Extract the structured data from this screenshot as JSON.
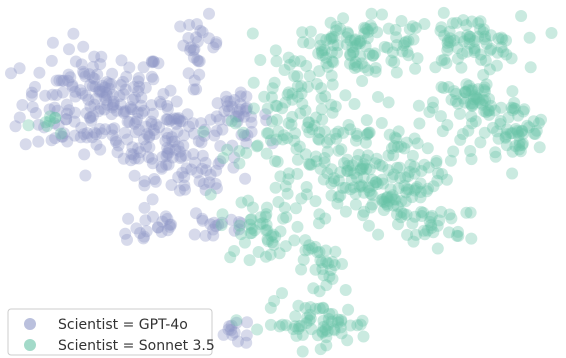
{
  "chart_data": {
    "type": "scatter",
    "title": "",
    "xlabel": "",
    "ylabel": "",
    "axes_visible": false,
    "grid": false,
    "xlim": [
      0,
      100
    ],
    "ylim": [
      0,
      100
    ],
    "legend": {
      "placement": "bottom-left"
    },
    "series": [
      {
        "name": "Scientist = GPT-4o",
        "color": "#8c96c6",
        "clusters": [
          {
            "center": [
              14,
              72
            ],
            "spread": [
              7,
              8
            ],
            "count": 180
          },
          {
            "center": [
              28,
              62
            ],
            "spread": [
              5,
              6
            ],
            "count": 90
          },
          {
            "center": [
              33,
              89
            ],
            "spread": [
              2,
              4
            ],
            "count": 25
          },
          {
            "center": [
              40,
              68
            ],
            "spread": [
              3,
              3
            ],
            "count": 35
          },
          {
            "center": [
              24,
              36
            ],
            "spread": [
              3,
              3
            ],
            "count": 18
          },
          {
            "center": [
              36,
              37
            ],
            "spread": [
              4,
              3
            ],
            "count": 20
          },
          {
            "center": [
              40,
              6
            ],
            "spread": [
              2,
              2
            ],
            "count": 12
          },
          {
            "center": [
              30,
              50
            ],
            "spread": [
              6,
              4
            ],
            "count": 30
          }
        ]
      },
      {
        "name": "Scientist = Sonnet 3.5",
        "color": "#66c2a5",
        "clusters": [
          {
            "center": [
              63,
              88
            ],
            "spread": [
              7,
              4
            ],
            "count": 110
          },
          {
            "center": [
              83,
              89
            ],
            "spread": [
              5,
              4
            ],
            "count": 70
          },
          {
            "center": [
              85,
              72
            ],
            "spread": [
              4,
              4
            ],
            "count": 60
          },
          {
            "center": [
              92,
              63
            ],
            "spread": [
              3,
              4
            ],
            "count": 45
          },
          {
            "center": [
              60,
              55
            ],
            "spread": [
              10,
              8
            ],
            "count": 180
          },
          {
            "center": [
              70,
              45
            ],
            "spread": [
              6,
              5
            ],
            "count": 60
          },
          {
            "center": [
              45,
              35
            ],
            "spread": [
              4,
              4
            ],
            "count": 45
          },
          {
            "center": [
              55,
              8
            ],
            "spread": [
              5,
              3
            ],
            "count": 60
          },
          {
            "center": [
              57,
              24
            ],
            "spread": [
              3,
              4
            ],
            "count": 30
          },
          {
            "center": [
              76,
              36
            ],
            "spread": [
              3,
              3
            ],
            "count": 25
          },
          {
            "center": [
              52,
              72
            ],
            "spread": [
              5,
              5
            ],
            "count": 50
          },
          {
            "center": [
              6,
              66
            ],
            "spread": [
              2,
              2
            ],
            "count": 8
          }
        ]
      }
    ]
  }
}
